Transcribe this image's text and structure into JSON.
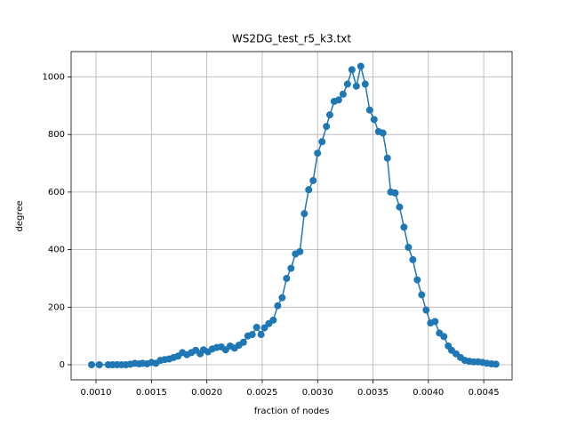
{
  "chart_data": {
    "type": "line",
    "title": "WS2DG_test_r5_k3.txt",
    "xlabel": "fraction of nodes",
    "ylabel": "degree",
    "x": [
      0.00096,
      0.00103,
      0.00111,
      0.00115,
      0.00119,
      0.00123,
      0.00127,
      0.00131,
      0.00135,
      0.00139,
      0.00142,
      0.00146,
      0.0015,
      0.00154,
      0.00158,
      0.00162,
      0.00166,
      0.0017,
      0.00174,
      0.00178,
      0.00182,
      0.00186,
      0.0019,
      0.00194,
      0.00197,
      0.00201,
      0.00205,
      0.00209,
      0.00213,
      0.00217,
      0.00221,
      0.00225,
      0.00229,
      0.00233,
      0.00237,
      0.00241,
      0.00245,
      0.00249,
      0.00252,
      0.00256,
      0.0026,
      0.00264,
      0.00268,
      0.00272,
      0.00276,
      0.0028,
      0.00284,
      0.00288,
      0.00292,
      0.00296,
      0.003,
      0.00304,
      0.00308,
      0.00311,
      0.00315,
      0.00319,
      0.00323,
      0.00327,
      0.00331,
      0.00335,
      0.00339,
      0.00343,
      0.00347,
      0.00351,
      0.00355,
      0.00359,
      0.00363,
      0.00366,
      0.0037,
      0.00374,
      0.00378,
      0.00382,
      0.00386,
      0.0039,
      0.00394,
      0.00398,
      0.00402,
      0.00406,
      0.0041,
      0.00414,
      0.00418,
      0.00421,
      0.00425,
      0.00429,
      0.00433,
      0.00437,
      0.00441,
      0.00445,
      0.00449,
      0.00453,
      0.00457,
      0.00461
    ],
    "values": [
      0,
      0,
      0,
      0,
      0,
      0,
      0,
      2,
      5,
      3,
      5,
      3,
      8,
      5,
      15,
      18,
      20,
      25,
      30,
      42,
      35,
      42,
      50,
      38,
      52,
      45,
      55,
      60,
      62,
      52,
      65,
      58,
      68,
      78,
      100,
      105,
      130,
      105,
      128,
      143,
      155,
      205,
      233,
      300,
      335,
      385,
      393,
      525,
      608,
      640,
      735,
      775,
      828,
      868,
      915,
      920,
      940,
      975,
      1025,
      968,
      1037,
      975,
      885,
      852,
      810,
      805,
      718,
      600,
      597,
      548,
      478,
      408,
      365,
      295,
      243,
      190,
      145,
      150,
      110,
      98,
      65,
      50,
      38,
      25,
      15,
      12,
      10,
      10,
      8,
      5,
      3,
      2
    ],
    "color": "#1f77b4",
    "xlim": [
      0.000775,
      0.004756
    ],
    "ylim": [
      -52.5,
      1088
    ],
    "xticks": [
      {
        "value": 0.001,
        "label": "0.0010"
      },
      {
        "value": 0.0015,
        "label": "0.0015"
      },
      {
        "value": 0.002,
        "label": "0.0020"
      },
      {
        "value": 0.0025,
        "label": "0.0025"
      },
      {
        "value": 0.003,
        "label": "0.0030"
      },
      {
        "value": 0.0035,
        "label": "0.0035"
      },
      {
        "value": 0.004,
        "label": "0.0040"
      },
      {
        "value": 0.0045,
        "label": "0.0045"
      }
    ],
    "yticks": [
      0,
      200,
      400,
      600,
      800,
      1000
    ],
    "grid": true
  }
}
